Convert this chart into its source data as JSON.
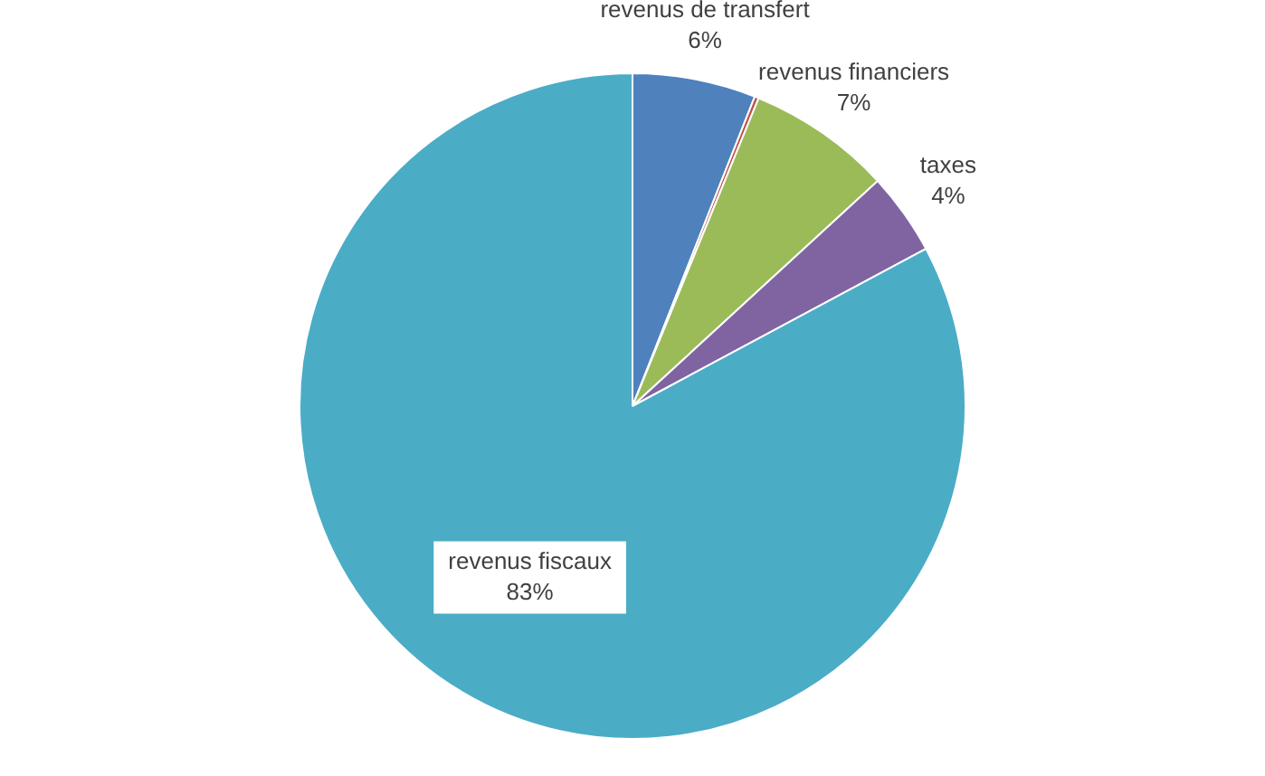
{
  "chart_data": {
    "type": "pie",
    "categories": [
      "revenus de transfert",
      null,
      "revenus financiers",
      "taxes",
      "revenus fiscaux"
    ],
    "values": [
      6,
      0.2,
      7,
      4,
      83
    ],
    "colors": [
      "#4f81bd",
      "#c0504d",
      "#9bbb59",
      "#8064a2",
      "#4bacc6"
    ],
    "value_labels": [
      "6%",
      null,
      "7%",
      "4%",
      "83%"
    ],
    "legend": false
  }
}
